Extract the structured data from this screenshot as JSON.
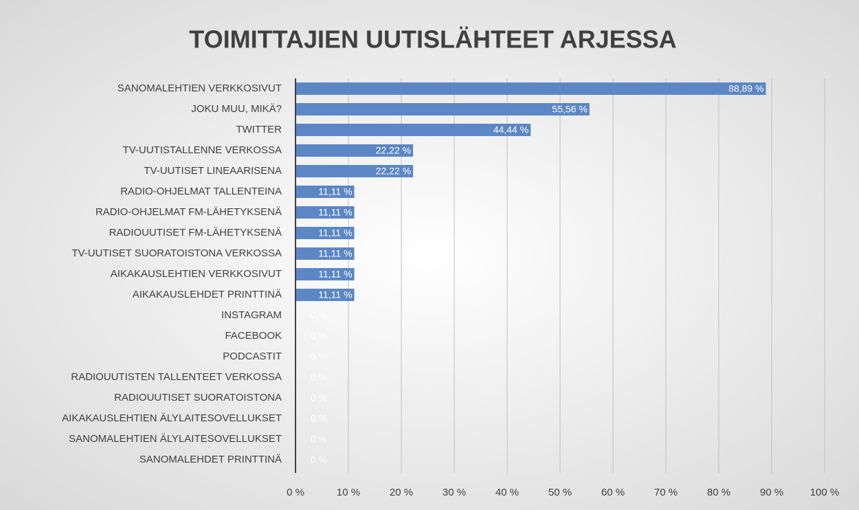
{
  "chart_data": {
    "type": "hbar",
    "title": "TOIMITTAJIEN UUTISLÄHTEET ARJESSA",
    "categories": [
      "SANOMALEHTIEN VERKKOSIVUT",
      "JOKU MUU, MIKÄ?",
      "TWITTER",
      "TV-UUTISTALLENNE VERKOSSA",
      "TV-UUTISET LINEAARISENA",
      "RADIO-OHJELMAT TALLENTEINA",
      "RADIO-OHJELMAT FM-LÄHETYKSENÄ",
      "RADIOUUTISET FM-LÄHETYKSENÄ",
      "TV-UUTISET SUORATOISTONA VERKOSSA",
      "AIKAKAUSLEHTIEN VERKKOSIVUT",
      "AIKAKAUSLEHDET PRINTTINÄ",
      "INSTAGRAM",
      "FACEBOOK",
      "PODCASTIT",
      "RADIOUUTISTEN TALLENTEET VERKOSSA",
      "RADIOUUTISET SUORATOISTONA",
      "AIKAKAUSLEHTIEN ÄLYLAITESOVELLUKSET",
      "SANOMALEHTIEN ÄLYLAITESOVELLUKSET",
      "SANOMALEHDET PRINTTINÄ"
    ],
    "values": [
      88.89,
      55.56,
      44.44,
      22.22,
      22.22,
      11.11,
      11.11,
      11.11,
      11.11,
      11.11,
      11.11,
      0,
      0,
      0,
      0,
      0,
      0,
      0,
      0
    ],
    "value_labels": [
      "88,89 %",
      "55,56 %",
      "44,44 %",
      "22,22 %",
      "22,22 %",
      "11,11 %",
      "11,11 %",
      "11,11 %",
      "11,11 %",
      "11,11 %",
      "11,11 %",
      "0 %",
      "0 %",
      "0 %",
      "0 %",
      "0 %",
      "0 %",
      "0 %",
      "0 %"
    ],
    "color": "#5b87c5",
    "xlim": [
      0,
      100
    ],
    "xticks": [
      {
        "value": 0,
        "label": "0 %"
      },
      {
        "value": 10,
        "label": "10 %"
      },
      {
        "value": 20,
        "label": "20 %"
      },
      {
        "value": 30,
        "label": "30 %"
      },
      {
        "value": 40,
        "label": "40 %"
      },
      {
        "value": 50,
        "label": "50 %"
      },
      {
        "value": 60,
        "label": "60 %"
      },
      {
        "value": 70,
        "label": "70 %"
      },
      {
        "value": 80,
        "label": "80 %"
      },
      {
        "value": 90,
        "label": "90 %"
      },
      {
        "value": 100,
        "label": "100 %"
      }
    ],
    "grid": true
  }
}
